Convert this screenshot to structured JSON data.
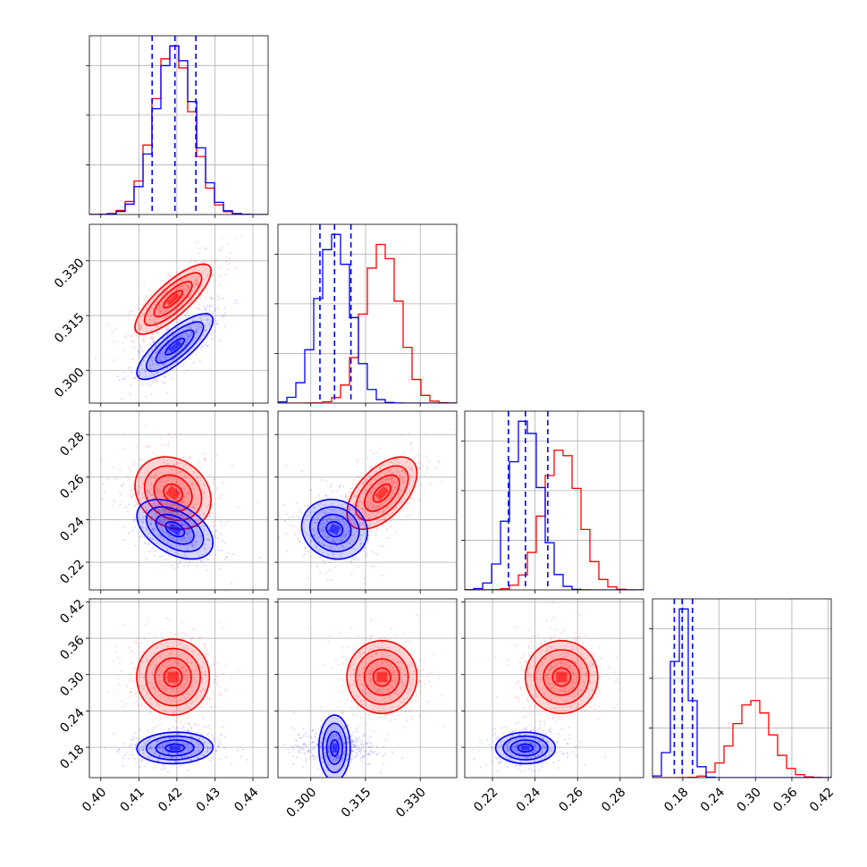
{
  "chart_data": {
    "type": "corner",
    "grid": true,
    "parameters": [
      {
        "id": "p0",
        "range": [
          0.397,
          0.444
        ],
        "ticks": [
          0.4,
          0.41,
          0.42,
          0.43,
          0.44
        ],
        "tick_labels": [
          "0.40",
          "0.41",
          "0.42",
          "0.43",
          "0.44"
        ]
      },
      {
        "id": "p1",
        "range": [
          0.291,
          0.34
        ],
        "ticks": [
          0.3,
          0.315,
          0.33
        ],
        "tick_labels": [
          "0.300",
          "0.315",
          "0.330"
        ]
      },
      {
        "id": "p2",
        "range": [
          0.207,
          0.291
        ],
        "ticks": [
          0.22,
          0.24,
          0.26,
          0.28
        ],
        "tick_labels": [
          "0.22",
          "0.24",
          "0.26",
          "0.28"
        ]
      },
      {
        "id": "p3",
        "range": [
          0.13,
          0.425
        ],
        "ticks": [
          0.18,
          0.24,
          0.3,
          0.36,
          0.42
        ],
        "tick_labels": [
          "0.18",
          "0.24",
          "0.30",
          "0.36",
          "0.42"
        ]
      }
    ],
    "series": [
      {
        "color": "#ff0000",
        "mean": [
          0.419,
          0.3195,
          0.2525,
          0.296
        ],
        "std": [
          0.005,
          0.0048,
          0.0085,
          0.03
        ],
        "corr": [
          [
            1,
            0.8,
            -0.2,
            0.0
          ],
          [
            0.8,
            1,
            0.55,
            0.0
          ],
          [
            -0.2,
            0.55,
            1,
            0.0
          ],
          [
            0.0,
            0.0,
            0.0,
            1
          ]
        ],
        "quantile_lines": false
      },
      {
        "color": "#0000ff",
        "mean": [
          0.4195,
          0.3065,
          0.2355,
          0.179
        ],
        "std": [
          0.005,
          0.0045,
          0.007,
          0.013
        ],
        "corr": [
          [
            1,
            0.8,
            -0.45,
            0.05
          ],
          [
            0.8,
            1,
            -0.1,
            0.0
          ],
          [
            -0.45,
            -0.1,
            1,
            0.0
          ],
          [
            0.05,
            0.0,
            0.0,
            1
          ]
        ],
        "quantile_lines": true,
        "quantiles": [
          [
            0.4135,
            0.4195,
            0.425
          ],
          [
            0.3025,
            0.3065,
            0.311
          ],
          [
            0.2275,
            0.2355,
            0.246
          ],
          [
            0.166,
            0.179,
            0.196
          ]
        ]
      }
    ]
  }
}
